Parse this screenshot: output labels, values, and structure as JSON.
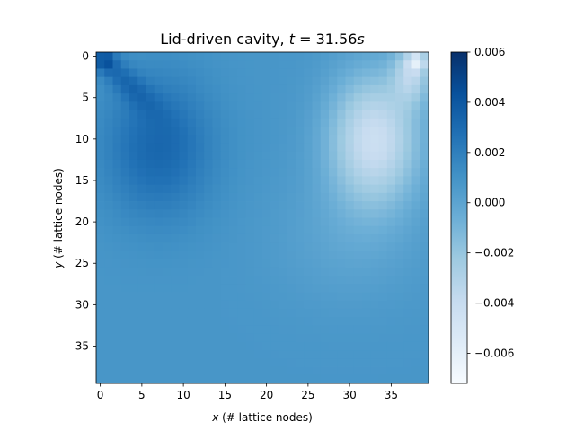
{
  "chart_data": {
    "type": "heatmap",
    "title": "Lid-driven cavity, t = 31.56s",
    "title_parts": {
      "prefix": "Lid-driven cavity, ",
      "t_var": "t",
      "eq": " = 31.56",
      "s_var": "s"
    },
    "xlabel": "x (# lattice nodes)",
    "xlabel_parts": {
      "var": "x",
      "rest": " (# lattice nodes)"
    },
    "ylabel": "y (# lattice nodes)",
    "ylabel_parts": {
      "var": "y",
      "rest": " (# lattice nodes)"
    },
    "grid_size": [
      40,
      40
    ],
    "x_ticks": [
      "0",
      "5",
      "10",
      "15",
      "20",
      "25",
      "30",
      "35"
    ],
    "y_ticks": [
      "0",
      "5",
      "10",
      "15",
      "20",
      "25",
      "30",
      "35"
    ],
    "xlim": [
      -0.5,
      39.5
    ],
    "ylim": [
      39.5,
      -0.5
    ],
    "y_axis_inverted": true,
    "colormap": "Blues",
    "colorbar": {
      "vmin": -0.0072,
      "vmax": 0.006,
      "ticks": [
        "0.006",
        "0.004",
        "0.002",
        "0.000",
        "−0.002",
        "−0.004",
        "−0.006"
      ],
      "tick_values": [
        0.006,
        0.004,
        0.002,
        0.0,
        -0.002,
        -0.004,
        -0.006
      ]
    },
    "field_description_values": {
      "top_left_corner_max": 0.006,
      "top_right_corner_min": -0.0072,
      "left_vortex_peak": 0.0032,
      "right_vortex_trough": -0.0042,
      "background": 0.0008
    },
    "grid": false,
    "legend": "colorbar-right"
  }
}
